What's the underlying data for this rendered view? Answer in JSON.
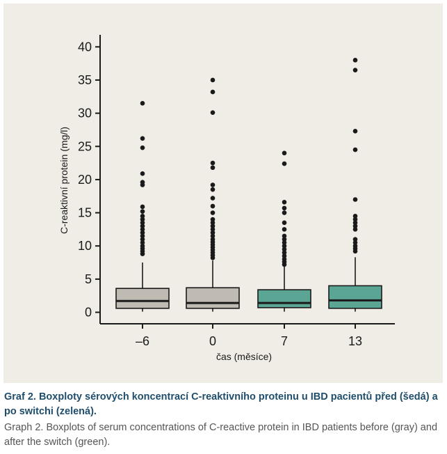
{
  "chart_data": {
    "type": "boxplot",
    "ylabel": "C-reaktivní protein (mg/l)",
    "xlabel": "čas (měsíce)",
    "ylim": [
      0,
      42
    ],
    "yticks": [
      0,
      5,
      10,
      15,
      20,
      25,
      30,
      35,
      40
    ],
    "categories": [
      "–6",
      "0",
      "7",
      "13"
    ],
    "colors": {
      "before": "#bfbab2",
      "after": "#5aa593",
      "outline": "#1a1a1a"
    },
    "boxes": [
      {
        "category": "–6",
        "group": "before",
        "q1": 0.6,
        "median": 1.7,
        "q3": 3.6,
        "whisker_low": 0.1,
        "whisker_high": 7.5,
        "outliers": [
          8.8,
          9.2,
          9.6,
          10.0,
          10.5,
          11.0,
          11.5,
          12.0,
          12.5,
          13.0,
          13.5,
          14.0,
          14.5,
          15.2,
          15.9,
          19.2,
          19.6,
          20.9,
          24.8,
          26.2,
          31.5
        ]
      },
      {
        "category": "0",
        "group": "before",
        "q1": 0.6,
        "median": 1.4,
        "q3": 3.7,
        "whisker_low": 0.1,
        "whisker_high": 7.8,
        "outliers": [
          8.2,
          8.6,
          9.0,
          9.4,
          9.8,
          10.2,
          10.6,
          11.0,
          11.5,
          12.0,
          12.5,
          13.0,
          13.5,
          14.0,
          15.0,
          16.0,
          17.2,
          18.5,
          19.2,
          21.8,
          22.5,
          30.1,
          33.2,
          35.0
        ]
      },
      {
        "category": "7",
        "group": "after",
        "q1": 0.7,
        "median": 1.4,
        "q3": 3.4,
        "whisker_low": 0.1,
        "whisker_high": 6.9,
        "outliers": [
          7.2,
          7.6,
          8.0,
          8.5,
          9.0,
          9.5,
          10.0,
          10.5,
          11.0,
          11.5,
          12.5,
          13.5,
          15.0,
          15.7,
          16.6,
          22.4,
          24.0
        ]
      },
      {
        "category": "13",
        "group": "after",
        "q1": 0.6,
        "median": 1.8,
        "q3": 4.0,
        "whisker_low": 0.1,
        "whisker_high": 8.3,
        "outliers": [
          9.2,
          9.6,
          10.0,
          10.5,
          11.0,
          12.5,
          13.0,
          13.5,
          14.0,
          14.5,
          17.0,
          24.5,
          27.3,
          36.5,
          38.0
        ]
      }
    ]
  },
  "caption": {
    "czech": "Graf 2. Boxploty sérových koncentrací C-reaktivního proteinu u IBD pacientů před (šedá) a po switchi (zelená).",
    "english": "Graph 2. Boxplots of serum concentrations of C-reactive protein in IBD patients before (gray) and after the switch (green)."
  }
}
